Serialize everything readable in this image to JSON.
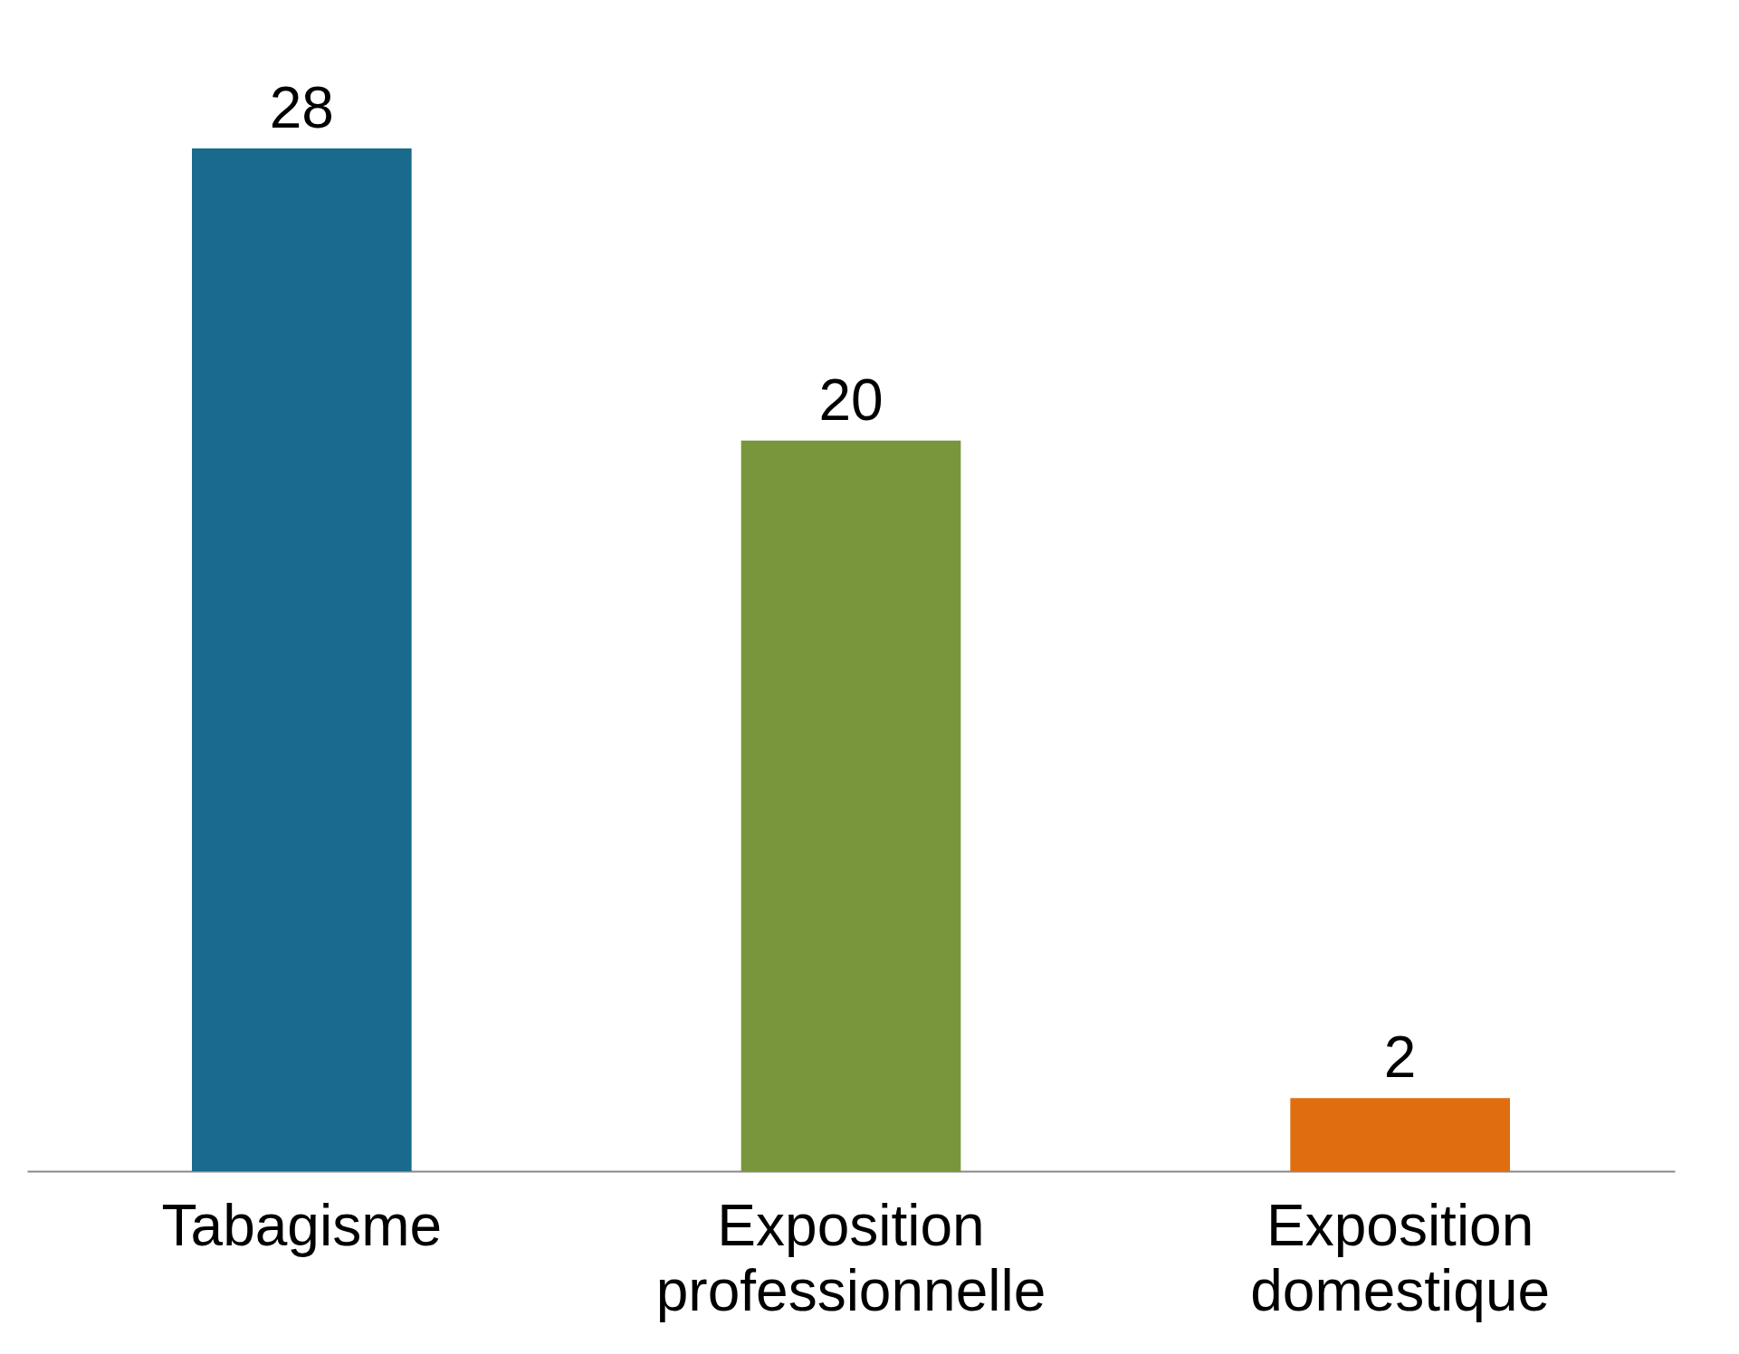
{
  "chart_data": {
    "type": "bar",
    "categories": [
      "Tabagisme",
      "Exposition professionnelle",
      "Exposition domestique"
    ],
    "values": [
      28,
      20,
      2
    ],
    "colors": [
      "#1a6a8e",
      "#7a963c",
      "#e06e10"
    ],
    "data_labels": true,
    "grid": false,
    "legend": false
  }
}
